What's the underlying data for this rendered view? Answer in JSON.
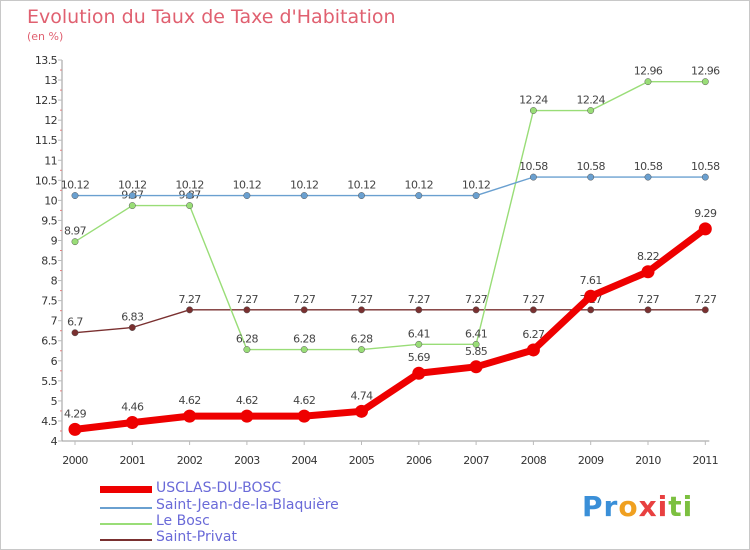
{
  "title": "Evolution du Taux de Taxe d'Habitation",
  "subtitle": "(en %)",
  "logo": {
    "letters": [
      "P",
      "r",
      "o",
      "x",
      "i",
      "t",
      "i"
    ],
    "colors": [
      "#3a8fd8",
      "#3a8fd8",
      "#f0a020",
      "#e84040",
      "#e84040",
      "#7cc040",
      "#7cc040"
    ]
  },
  "chart_data": {
    "type": "line",
    "x": [
      "2000",
      "2001",
      "2002",
      "2003",
      "2004",
      "2005",
      "2006",
      "2007",
      "2008",
      "2009",
      "2010",
      "2011"
    ],
    "ylim": [
      4,
      13.5
    ],
    "yticks": [
      "4",
      "4.5",
      "5",
      "5.5",
      "6",
      "6.5",
      "7",
      "7.5",
      "8",
      "8.5",
      "9",
      "9.5",
      "10",
      "10.5",
      "11",
      "11.5",
      "12",
      "12.5",
      "13",
      "13.5"
    ],
    "grid": false,
    "legend_position": "bottom-left",
    "series": [
      {
        "name": "Saint-Privat",
        "color": "#7a3030",
        "values": [
          6.7,
          6.83,
          7.27,
          7.27,
          7.27,
          7.27,
          7.27,
          7.27,
          7.27,
          7.27,
          7.27,
          7.27
        ],
        "labels": [
          "6.7",
          "6.83",
          "7.27",
          "7.27",
          "7.27",
          "7.27",
          "7.27",
          "7.27",
          "7.27",
          "7.27",
          "7.27",
          "7.27"
        ]
      },
      {
        "name": "Le Bosc",
        "color": "#99dd77",
        "values": [
          8.97,
          9.87,
          9.87,
          6.28,
          6.28,
          6.28,
          6.41,
          6.41,
          12.24,
          12.24,
          12.96,
          12.96
        ],
        "labels": [
          "8.97",
          "9.87",
          "9.87",
          "6.28",
          "6.28",
          "6.28",
          "6.41",
          "6.41",
          "12.24",
          "12.24",
          "12.96",
          "12.96"
        ]
      },
      {
        "name": "Saint-Jean-de-la-Blaquière",
        "color": "#6aa0d0",
        "values": [
          10.12,
          10.12,
          10.12,
          10.12,
          10.12,
          10.12,
          10.12,
          10.12,
          10.58,
          10.58,
          10.58,
          10.58
        ],
        "labels": [
          "10.12",
          "10.12",
          "10.12",
          "10.12",
          "10.12",
          "10.12",
          "10.12",
          "10.12",
          "10.58",
          "10.58",
          "10.58",
          "10.58"
        ]
      },
      {
        "name": "USCLAS-DU-BOSC",
        "color": "#ee0000",
        "values": [
          4.29,
          4.46,
          4.62,
          4.62,
          4.62,
          4.74,
          5.69,
          5.85,
          6.27,
          7.61,
          8.22,
          9.29
        ],
        "labels": [
          "4.29",
          "4.46",
          "4.62",
          "4.62",
          "4.62",
          "4.74",
          "5.69",
          "5.85",
          "6.27",
          "7.61",
          "8.22",
          "9.29"
        ]
      }
    ],
    "legend": [
      "USCLAS-DU-BOSC",
      "Saint-Jean-de-la-Blaquière",
      "Le Bosc",
      "Saint-Privat"
    ]
  }
}
